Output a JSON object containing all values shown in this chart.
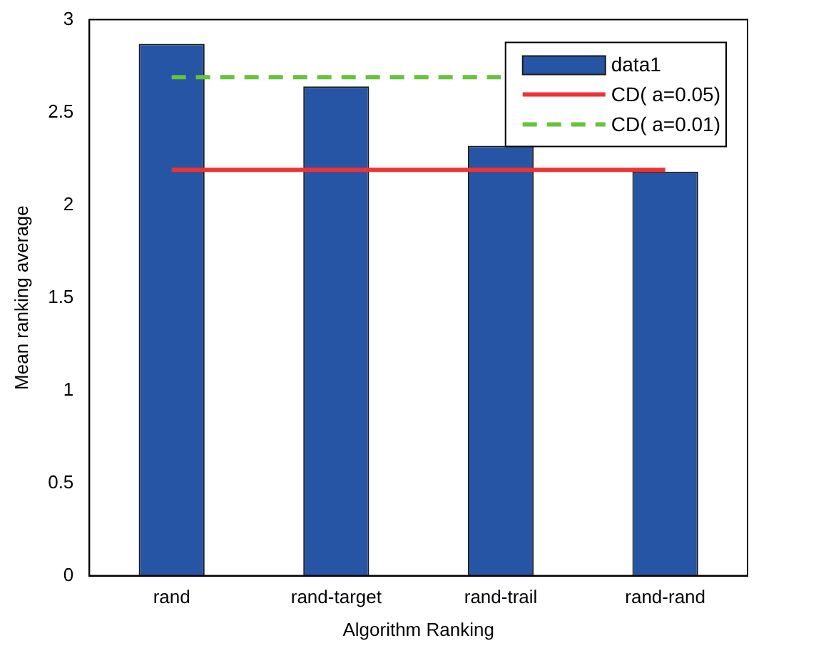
{
  "chart_data": {
    "type": "bar",
    "xlabel": "Algorithm Ranking",
    "ylabel": "Mean ranking average",
    "categories": [
      "rand",
      "rand-target",
      "rand-trail",
      "rand-rand"
    ],
    "series": [
      {
        "name": "data1",
        "color": "#2755a5",
        "values": [
          2.87,
          2.64,
          2.32,
          2.18
        ]
      },
      {
        "type": "line",
        "name": "CD( a=0.05)",
        "color": "#ee3333",
        "line_style": "solid",
        "values": [
          2.19,
          2.19,
          2.19,
          2.19
        ]
      },
      {
        "type": "line",
        "name": "CD( a=0.01)",
        "color": "#66c43a",
        "line_style": "dashed",
        "values": [
          2.69,
          2.69,
          2.69,
          null
        ]
      }
    ],
    "ylim": [
      0,
      3
    ],
    "yticks": [
      0,
      0.5,
      1,
      1.5,
      2,
      2.5,
      3
    ],
    "legend": "top right",
    "grid": false
  }
}
